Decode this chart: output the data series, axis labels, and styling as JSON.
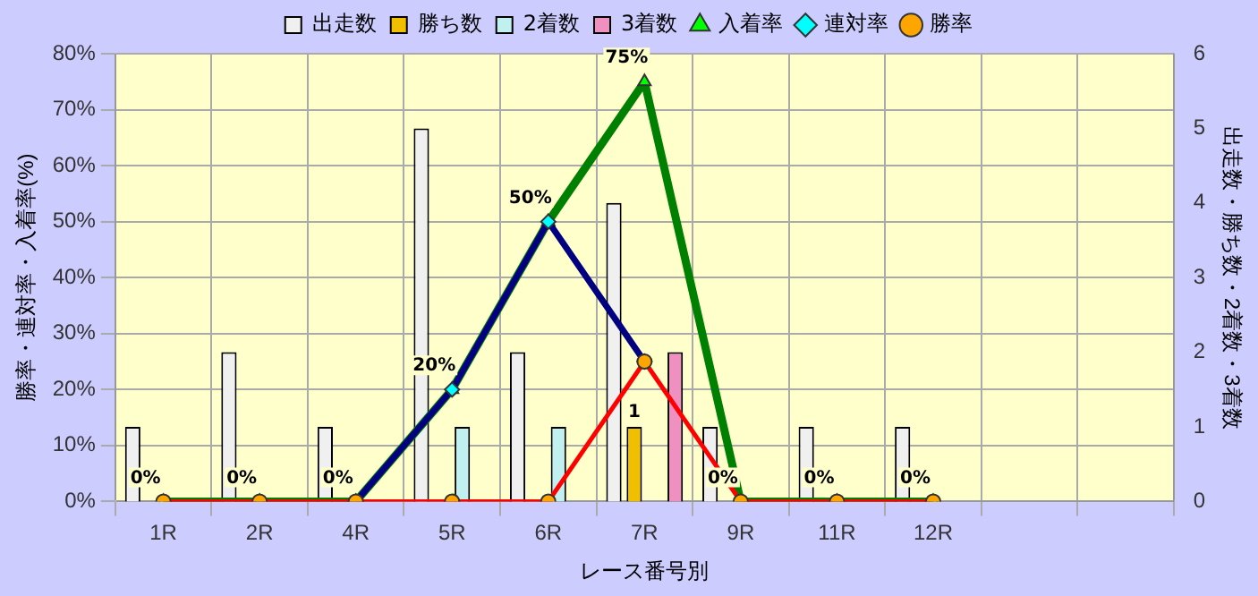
{
  "chart_data": {
    "type": "bar",
    "xlabel": "レース番号別",
    "ylabel": "勝率・連対率・入着率(%)",
    "y2label": "出走数・勝ち数・2着数・3着数",
    "categories": [
      "1R",
      "2R",
      "4R",
      "5R",
      "6R",
      "7R",
      "9R",
      "11R",
      "12R",
      null,
      null
    ],
    "series": [
      {
        "name": "出走数",
        "axis": "y2",
        "color": "#f0f0f0",
        "values": [
          1,
          2,
          1,
          5,
          2,
          4,
          1,
          1,
          1,
          null,
          null
        ]
      },
      {
        "name": "勝ち数",
        "axis": "y2",
        "color": "#f0c000",
        "values": [
          0,
          0,
          0,
          0,
          0,
          1,
          0,
          0,
          0,
          null,
          null
        ],
        "value_labels": [
          null,
          null,
          null,
          null,
          null,
          "1",
          null,
          null,
          null,
          null,
          null
        ]
      },
      {
        "name": "2着数",
        "axis": "y2",
        "color": "#c0f0f0",
        "values": [
          0,
          0,
          0,
          1,
          1,
          0,
          0,
          0,
          0,
          null,
          null
        ]
      },
      {
        "name": "3着数",
        "axis": "y2",
        "color": "#f090c0",
        "values": [
          0,
          0,
          0,
          0,
          0,
          2,
          0,
          0,
          0,
          null,
          null
        ]
      },
      {
        "name": "入着率",
        "type": "line",
        "color": "#008000",
        "marker": "triangle",
        "values": [
          0,
          0,
          0,
          20,
          50,
          75,
          0,
          0,
          0,
          null,
          null
        ],
        "value_labels": [
          "0%",
          "0%",
          "0%",
          "20%",
          "50%",
          "75%",
          "0%",
          "0%",
          "0%",
          null,
          null
        ]
      },
      {
        "name": "連対率",
        "type": "line",
        "color": "#000080",
        "marker": "diamond",
        "values": [
          null,
          null,
          0,
          20,
          50,
          25,
          null,
          null,
          null,
          null,
          null
        ]
      },
      {
        "name": "勝率",
        "type": "line",
        "color": "#ff0000",
        "marker": "circle",
        "values": [
          0,
          0,
          0,
          0,
          0,
          25,
          0,
          0,
          0,
          null,
          null
        ]
      }
    ],
    "ylim": [
      0,
      80
    ],
    "yticks": [
      {
        "value": 0,
        "label": "0%"
      },
      {
        "value": 10,
        "label": "10%"
      },
      {
        "value": 20,
        "label": "20%"
      },
      {
        "value": 30,
        "label": "30%"
      },
      {
        "value": 40,
        "label": "40%"
      },
      {
        "value": 50,
        "label": "50%"
      },
      {
        "value": 60,
        "label": "60%"
      },
      {
        "value": 70,
        "label": "70%"
      },
      {
        "value": 80,
        "label": "80%"
      }
    ],
    "y2lim": [
      0,
      6
    ],
    "y2ticks": [
      0,
      1,
      2,
      3,
      4,
      5,
      6
    ],
    "grid": true,
    "legend": "top"
  }
}
